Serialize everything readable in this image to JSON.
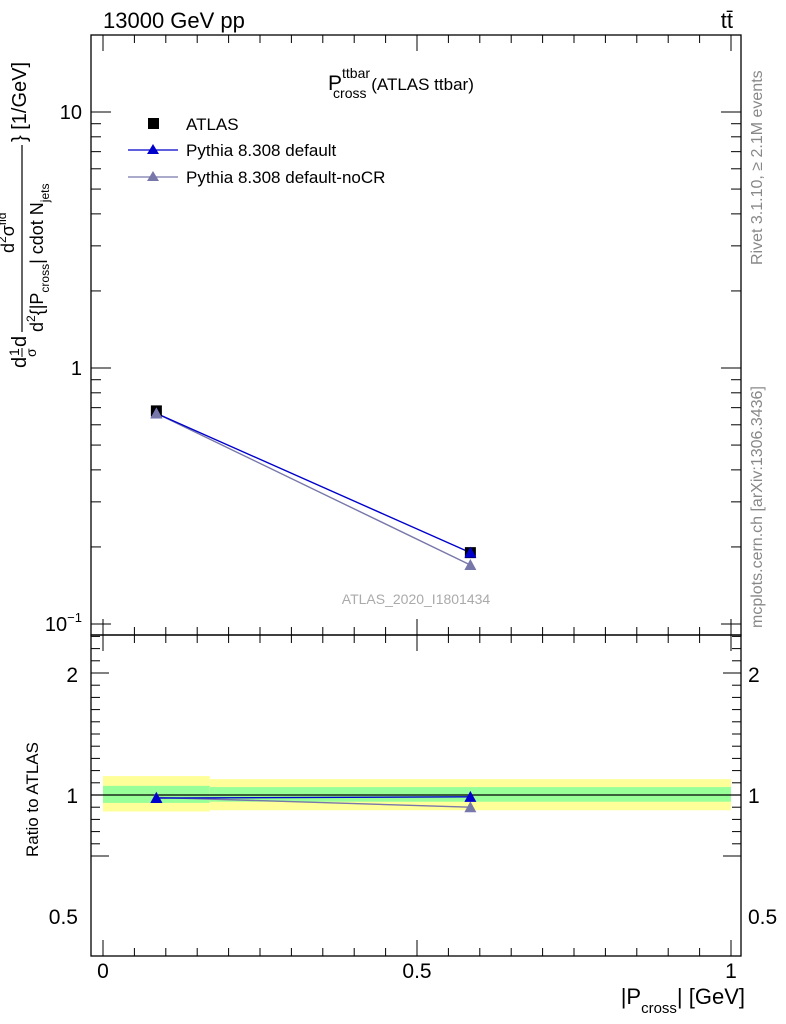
{
  "header": {
    "energy_label": "13000 GeV pp",
    "process_label": "tt̄"
  },
  "side_labels": {
    "rivet": "Rivet 3.1.10, ≥ 2.1M events",
    "mcplots": "mcplots.cern.ch [arXiv:1306.3436]"
  },
  "colors": {
    "atlas": "#000000",
    "default": "#0000cc",
    "nocr": "#7777aa",
    "band_stat": "#99ff99",
    "band_total": "#ffff99"
  },
  "chart_data": [
    {
      "type": "line",
      "title_main": "P",
      "title_sup": "ttbar",
      "title_sub": "cross",
      "title_rest": " (ATLAS ttbar)",
      "watermark": "ATLAS_2020_I1801434",
      "ylabel_parts": {
        "part_d1": "d",
        "frac_num": "1",
        "frac_den": "σ",
        "part_d2": "d",
        "top_d2": "d",
        "top_2": "2",
        "top_sigma": "σ",
        "top_fid": "fid",
        "bottom_d": "d",
        "bottom_2": "2",
        "bottom_open": "{|P",
        "bottom_cross": "cross",
        "bottom_close": "| cdot N",
        "bottom_jets": "jets",
        "closing": "} [1/GeV]"
      },
      "yscale": "log",
      "ylim": [
        0.1,
        20
      ],
      "xlim": [
        0,
        1
      ],
      "yticks": [
        {
          "value": 0.1,
          "base": "10",
          "exp": "−1"
        },
        {
          "value": 1,
          "base": "1",
          "exp": ""
        },
        {
          "value": 10,
          "base": "10",
          "exp": ""
        }
      ],
      "legend_placement": "top-left",
      "series": [
        {
          "name": "ATLAS",
          "marker": "square",
          "x": [
            0.085,
            0.585
          ],
          "y": [
            0.68,
            0.19
          ]
        },
        {
          "name": "Pythia 8.308 default",
          "marker": "triangle",
          "x": [
            0.085,
            0.585
          ],
          "y": [
            0.665,
            0.19
          ]
        },
        {
          "name": "Pythia 8.308 default-noCR",
          "marker": "triangle",
          "x": [
            0.085,
            0.585
          ],
          "y": [
            0.665,
            0.17
          ]
        }
      ]
    },
    {
      "type": "line",
      "ylabel": "Ratio to ATLAS",
      "xlabel_main": "|P",
      "xlabel_sub": "cross",
      "xlabel_rest": "| [GeV]",
      "ylim": [
        0.4,
        2.5
      ],
      "xlim": [
        0,
        1
      ],
      "xticks": [
        "0",
        "0.5",
        "1"
      ],
      "yticks": [
        "0.5",
        "1",
        "2"
      ],
      "reference_line": 1,
      "bands": [
        {
          "x0": 0,
          "x1": 0.17,
          "stat": [
            0.935,
            1.075
          ],
          "total": [
            0.865,
            1.155
          ]
        },
        {
          "x0": 0.17,
          "x1": 1,
          "stat": [
            0.945,
            1.065
          ],
          "total": [
            0.875,
            1.13
          ]
        }
      ],
      "series": [
        {
          "name": "Pythia 8.308 default",
          "x": [
            0.085,
            0.585
          ],
          "y": [
            0.975,
            0.985
          ],
          "err": [
            0.03,
            0.03
          ]
        },
        {
          "name": "Pythia 8.308 default-noCR",
          "x": [
            0.085,
            0.585
          ],
          "y": [
            0.98,
            0.9
          ],
          "err": [
            0.03,
            0.02
          ]
        }
      ]
    }
  ]
}
